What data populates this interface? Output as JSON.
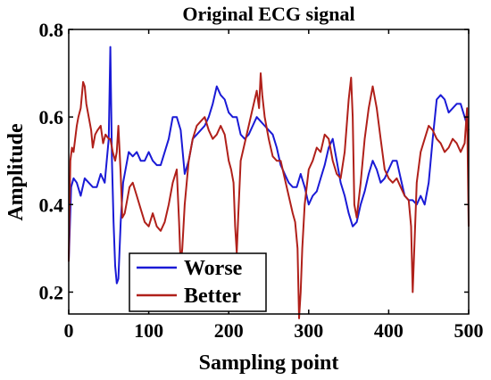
{
  "chart_data": {
    "type": "line",
    "title": "Original ECG signal",
    "xlabel": "Sampling point",
    "ylabel": "Amplitude",
    "xlim": [
      0,
      500
    ],
    "ylim": [
      0.15,
      0.8
    ],
    "xticks": [
      0,
      100,
      200,
      300,
      400,
      500
    ],
    "yticks": [
      0.2,
      0.4,
      0.6,
      0.8
    ],
    "xtick_labels": [
      "0",
      "100",
      "200",
      "300",
      "400",
      "500"
    ],
    "ytick_labels": [
      "0.2",
      "0.4",
      "0.6",
      "0.8"
    ],
    "grid": false,
    "legend_position": "bottom-left",
    "series": [
      {
        "name": "Worse",
        "color": "#1a1ad6",
        "x": [
          0,
          3,
          6,
          10,
          15,
          20,
          25,
          30,
          35,
          40,
          45,
          50,
          52,
          54,
          56,
          58,
          60,
          62,
          65,
          68,
          70,
          75,
          80,
          85,
          90,
          95,
          100,
          105,
          110,
          115,
          120,
          125,
          130,
          135,
          140,
          145,
          150,
          155,
          160,
          165,
          170,
          175,
          180,
          185,
          190,
          195,
          200,
          205,
          210,
          215,
          220,
          225,
          230,
          235,
          240,
          245,
          250,
          255,
          260,
          265,
          270,
          275,
          280,
          285,
          290,
          295,
          300,
          305,
          310,
          315,
          320,
          325,
          330,
          335,
          340,
          345,
          350,
          355,
          360,
          365,
          370,
          375,
          380,
          385,
          390,
          395,
          400,
          405,
          410,
          415,
          420,
          425,
          430,
          435,
          440,
          445,
          450,
          455,
          460,
          465,
          470,
          475,
          480,
          485,
          490,
          495,
          500
        ],
        "y": [
          0.27,
          0.44,
          0.46,
          0.45,
          0.42,
          0.46,
          0.45,
          0.44,
          0.44,
          0.47,
          0.45,
          0.55,
          0.76,
          0.5,
          0.36,
          0.26,
          0.22,
          0.23,
          0.36,
          0.45,
          0.47,
          0.52,
          0.51,
          0.52,
          0.5,
          0.5,
          0.52,
          0.5,
          0.49,
          0.49,
          0.52,
          0.55,
          0.6,
          0.6,
          0.57,
          0.47,
          0.5,
          0.55,
          0.56,
          0.57,
          0.58,
          0.6,
          0.63,
          0.67,
          0.65,
          0.64,
          0.61,
          0.6,
          0.6,
          0.56,
          0.55,
          0.56,
          0.58,
          0.6,
          0.59,
          0.58,
          0.57,
          0.56,
          0.53,
          0.49,
          0.47,
          0.45,
          0.44,
          0.44,
          0.47,
          0.44,
          0.4,
          0.42,
          0.43,
          0.46,
          0.49,
          0.53,
          0.55,
          0.5,
          0.45,
          0.42,
          0.38,
          0.35,
          0.36,
          0.4,
          0.43,
          0.47,
          0.5,
          0.48,
          0.45,
          0.46,
          0.48,
          0.5,
          0.5,
          0.46,
          0.42,
          0.41,
          0.41,
          0.4,
          0.42,
          0.4,
          0.45,
          0.55,
          0.64,
          0.65,
          0.64,
          0.61,
          0.62,
          0.63,
          0.63,
          0.6,
          0.57
        ]
      },
      {
        "name": "Better",
        "color": "#b0201a",
        "x": [
          0,
          2,
          4,
          6,
          8,
          10,
          12,
          15,
          18,
          20,
          22,
          25,
          28,
          30,
          33,
          36,
          40,
          43,
          46,
          50,
          52,
          55,
          58,
          60,
          62,
          65,
          67,
          70,
          73,
          76,
          80,
          85,
          90,
          95,
          100,
          105,
          110,
          115,
          120,
          125,
          130,
          135,
          138,
          140,
          142,
          145,
          150,
          155,
          160,
          165,
          170,
          175,
          180,
          185,
          190,
          195,
          200,
          203,
          206,
          208,
          210,
          212,
          215,
          220,
          225,
          230,
          235,
          238,
          240,
          242,
          245,
          250,
          255,
          260,
          265,
          270,
          275,
          280,
          283,
          286,
          288,
          290,
          292,
          295,
          300,
          305,
          310,
          315,
          320,
          325,
          330,
          335,
          340,
          345,
          350,
          353,
          355,
          357,
          360,
          365,
          370,
          375,
          380,
          385,
          390,
          395,
          400,
          405,
          410,
          415,
          420,
          425,
          428,
          430,
          432,
          435,
          440,
          445,
          450,
          455,
          460,
          465,
          470,
          475,
          480,
          485,
          490,
          495,
          498,
          500
        ],
        "y": [
          0.27,
          0.5,
          0.53,
          0.52,
          0.55,
          0.58,
          0.6,
          0.62,
          0.68,
          0.67,
          0.63,
          0.6,
          0.57,
          0.53,
          0.56,
          0.57,
          0.58,
          0.54,
          0.56,
          0.55,
          0.55,
          0.52,
          0.5,
          0.52,
          0.58,
          0.47,
          0.37,
          0.38,
          0.41,
          0.44,
          0.45,
          0.42,
          0.39,
          0.36,
          0.35,
          0.38,
          0.35,
          0.34,
          0.36,
          0.4,
          0.45,
          0.48,
          0.36,
          0.26,
          0.3,
          0.4,
          0.5,
          0.55,
          0.58,
          0.59,
          0.6,
          0.57,
          0.55,
          0.56,
          0.58,
          0.56,
          0.5,
          0.48,
          0.45,
          0.35,
          0.29,
          0.38,
          0.5,
          0.54,
          0.58,
          0.62,
          0.66,
          0.62,
          0.7,
          0.65,
          0.6,
          0.55,
          0.51,
          0.5,
          0.5,
          0.46,
          0.42,
          0.38,
          0.36,
          0.3,
          0.14,
          0.2,
          0.3,
          0.4,
          0.48,
          0.5,
          0.53,
          0.52,
          0.56,
          0.55,
          0.5,
          0.47,
          0.46,
          0.52,
          0.64,
          0.69,
          0.6,
          0.4,
          0.37,
          0.45,
          0.55,
          0.62,
          0.67,
          0.62,
          0.55,
          0.48,
          0.46,
          0.45,
          0.46,
          0.44,
          0.42,
          0.41,
          0.35,
          0.2,
          0.3,
          0.45,
          0.52,
          0.55,
          0.58,
          0.57,
          0.55,
          0.54,
          0.52,
          0.53,
          0.55,
          0.54,
          0.52,
          0.54,
          0.62,
          0.35
        ]
      }
    ]
  }
}
